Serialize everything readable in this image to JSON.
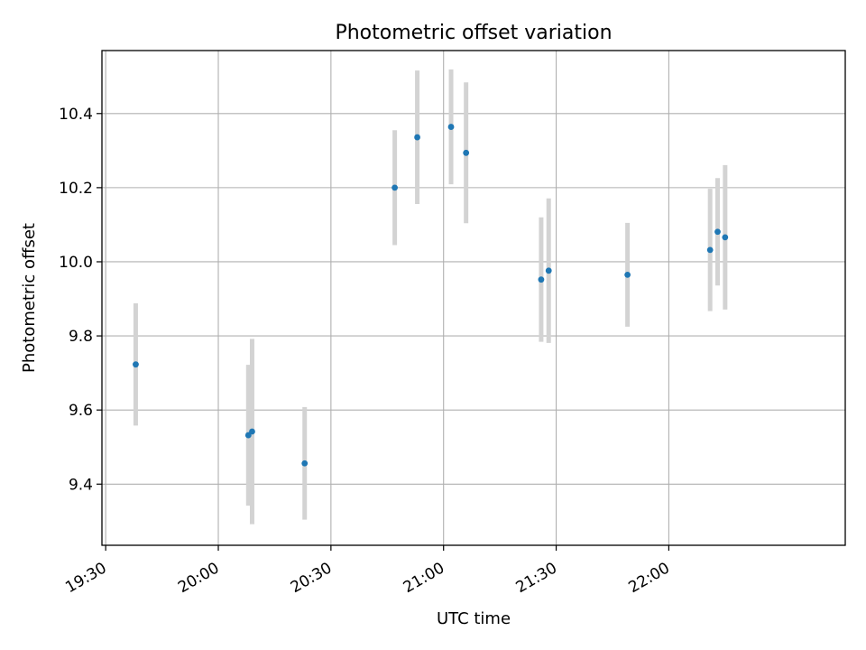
{
  "chart_data": {
    "type": "scatter",
    "title": "Photometric offset variation",
    "xlabel": "UTC time",
    "ylabel": "Photometric offset",
    "x_axis_type": "time",
    "xlim": [
      "19:29",
      "22:47"
    ],
    "ylim": [
      9.235,
      10.57
    ],
    "x_ticks": [
      "19:30",
      "20:00",
      "20:30",
      "21:00",
      "21:30",
      "22:00"
    ],
    "y_ticks": [
      9.4,
      9.6,
      9.8,
      10.0,
      10.2,
      10.4
    ],
    "y_tick_labels": [
      "9.4",
      "9.6",
      "9.8",
      "10.0",
      "10.2",
      "10.4"
    ],
    "grid": true,
    "legend": false,
    "colors": {
      "point": "#1f77b4",
      "error_bar": "#d3d3d3",
      "grid": "#b0b0b0"
    },
    "points": [
      {
        "x": "19:38",
        "y": 9.723,
        "err": 0.165
      },
      {
        "x": "20:08",
        "y": 9.532,
        "err": 0.19
      },
      {
        "x": "20:09",
        "y": 9.542,
        "err": 0.25
      },
      {
        "x": "20:23",
        "y": 9.456,
        "err": 0.152
      },
      {
        "x": "20:47",
        "y": 10.2,
        "err": 0.155
      },
      {
        "x": "20:53",
        "y": 10.336,
        "err": 0.18
      },
      {
        "x": "21:02",
        "y": 10.364,
        "err": 0.155
      },
      {
        "x": "21:06",
        "y": 10.294,
        "err": 0.19
      },
      {
        "x": "21:26",
        "y": 9.952,
        "err": 0.168
      },
      {
        "x": "21:28",
        "y": 9.976,
        "err": 0.195
      },
      {
        "x": "21:49",
        "y": 9.965,
        "err": 0.14
      },
      {
        "x": "22:11",
        "y": 10.032,
        "err": 0.165
      },
      {
        "x": "22:13",
        "y": 10.081,
        "err": 0.145
      },
      {
        "x": "22:15",
        "y": 10.066,
        "err": 0.195
      }
    ]
  }
}
